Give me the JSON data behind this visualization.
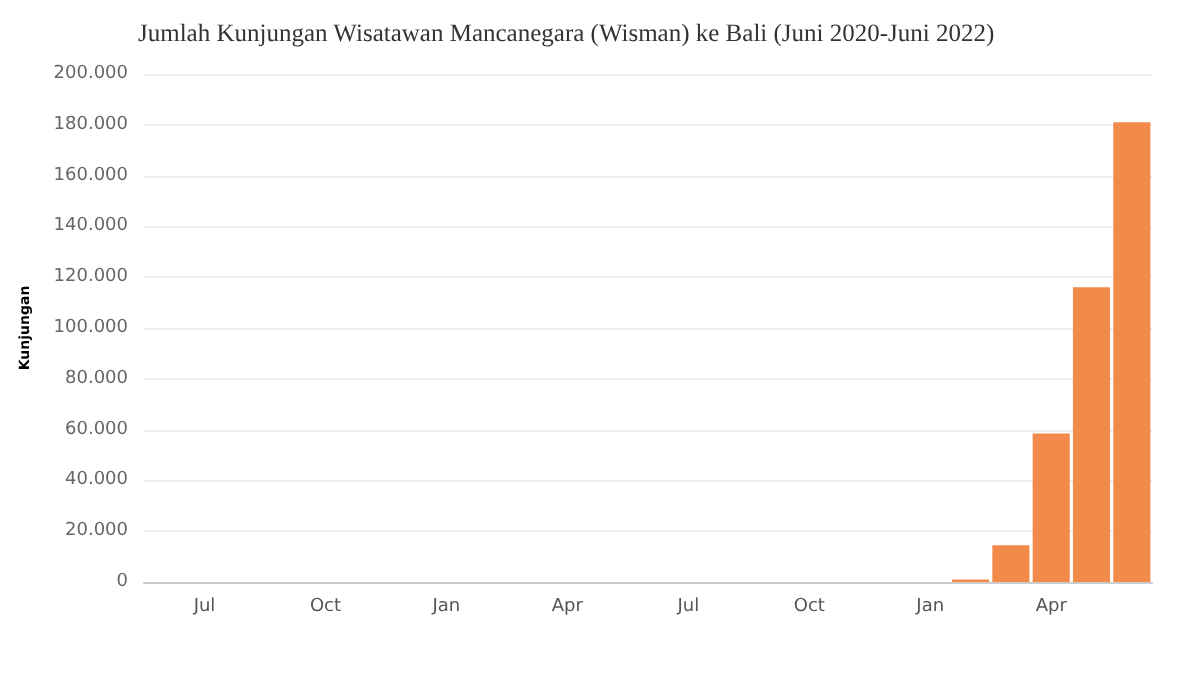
{
  "chart_data": {
    "type": "bar",
    "title": "Jumlah Kunjungan Wisatawan Mancanegara (Wisman) ke Bali (Juni 2020-Juni 2022)",
    "ylabel": "Kunjungan",
    "categories": [
      null,
      "Jul",
      null,
      null,
      "Oct",
      null,
      null,
      "Jan",
      null,
      null,
      "Apr",
      null,
      null,
      "Jul",
      null,
      null,
      "Oct",
      null,
      null,
      "Jan",
      null,
      null,
      "Apr",
      null,
      null
    ],
    "values": [
      0,
      0,
      0,
      0,
      0,
      0,
      0,
      0,
      0,
      0,
      0,
      0,
      0,
      0,
      0,
      0,
      0,
      0,
      0,
      0,
      1000,
      14500,
      58500,
      116000,
      181000
    ],
    "color": "#f28a4a",
    "ylim": [
      0,
      200000
    ],
    "yticks": [
      {
        "value": 0,
        "label": "0"
      },
      {
        "value": 20000,
        "label": "20.000"
      },
      {
        "value": 40000,
        "label": "40.000"
      },
      {
        "value": 60000,
        "label": "60.000"
      },
      {
        "value": 80000,
        "label": "80.000"
      },
      {
        "value": 100000,
        "label": "100.000"
      },
      {
        "value": 120000,
        "label": "120.000"
      },
      {
        "value": 140000,
        "label": "140.000"
      },
      {
        "value": 160000,
        "label": "160.000"
      },
      {
        "value": 180000,
        "label": "180.000"
      },
      {
        "value": 200000,
        "label": "200.000"
      }
    ],
    "grid": "y"
  }
}
